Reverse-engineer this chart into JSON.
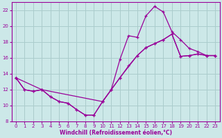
{
  "xlabel": "Windchill (Refroidissement éolien,°C)",
  "bg_color": "#cce8e8",
  "grid_color": "#aacccc",
  "line_color": "#990099",
  "xlim": [
    -0.5,
    23.5
  ],
  "ylim": [
    8,
    23
  ],
  "xticks": [
    0,
    1,
    2,
    3,
    4,
    5,
    6,
    7,
    8,
    9,
    10,
    11,
    12,
    13,
    14,
    15,
    16,
    17,
    18,
    19,
    20,
    21,
    22,
    23
  ],
  "yticks": [
    8,
    10,
    12,
    14,
    16,
    18,
    20,
    22
  ],
  "curve1_x": [
    0,
    1,
    2,
    3,
    4,
    5,
    6,
    7,
    8,
    9,
    10,
    11,
    12,
    13,
    14,
    15,
    16,
    17,
    18,
    19,
    20,
    21,
    22,
    23
  ],
  "curve1_y": [
    13.5,
    12.0,
    11.8,
    12.0,
    11.1,
    10.5,
    10.3,
    9.5,
    8.8,
    8.8,
    10.5,
    12.0,
    15.8,
    18.8,
    18.6,
    21.3,
    22.5,
    21.8,
    19.3,
    18.3,
    17.2,
    16.8,
    16.3,
    16.3
  ],
  "curve2_x": [
    0,
    1,
    2,
    3,
    10,
    11,
    12,
    14,
    15,
    16,
    17,
    18,
    19,
    20,
    21,
    22,
    23
  ],
  "curve2_y": [
    13.5,
    12.0,
    11.8,
    12.0,
    10.5,
    12.0,
    13.5,
    16.3,
    17.3,
    17.8,
    18.3,
    19.0,
    16.2,
    16.3,
    16.5,
    16.3,
    16.3
  ],
  "curve3_x": [
    0,
    3,
    4,
    5,
    6,
    7,
    8,
    9,
    10,
    11,
    12,
    13,
    14,
    15,
    16,
    17,
    18,
    19,
    20,
    21,
    22,
    23
  ],
  "curve3_y": [
    13.5,
    12.0,
    11.1,
    10.5,
    10.3,
    9.5,
    8.8,
    8.8,
    10.5,
    12.0,
    13.5,
    15.0,
    16.3,
    17.3,
    17.8,
    18.3,
    19.0,
    16.2,
    16.3,
    16.5,
    16.3,
    16.3
  ]
}
